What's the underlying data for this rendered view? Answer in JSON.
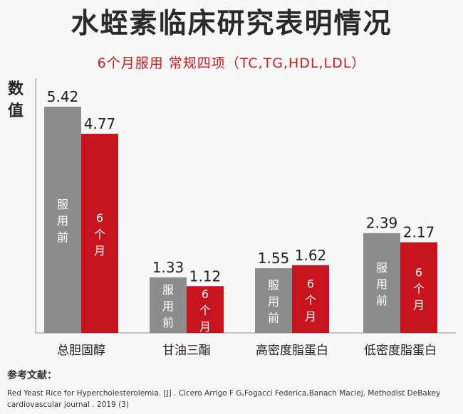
{
  "title": "水蛭素临床研究表明情况",
  "subtitle": "6个月服用 常规四项（TC,TG,HDL,LDL）",
  "y_axis_label": "数值",
  "colors": {
    "before": "#8d8d8d",
    "after": "#c8141c",
    "axis": "#b0b0b0",
    "value_text": "#222222"
  },
  "chart_data": {
    "type": "bar",
    "title": "水蛭素临床研究表明情况",
    "subtitle": "6个月服用 常规四项（TC,TG,HDL,LDL）",
    "ylabel": "数值",
    "xlabel": "",
    "ylim": [
      0,
      6.1
    ],
    "categories": [
      "总胆固醇",
      "甘油三酯",
      "高密度脂蛋白",
      "低密度脂蛋白"
    ],
    "series": [
      {
        "name": "服用前",
        "bar_text": [
          "服",
          "用",
          "前"
        ],
        "values": [
          5.42,
          1.33,
          1.55,
          2.39
        ]
      },
      {
        "name": "6个月",
        "bar_text": [
          "6",
          "个",
          "月"
        ],
        "values": [
          4.77,
          1.12,
          1.62,
          2.17
        ]
      }
    ],
    "value_labels": [
      [
        "5.42",
        "1.33",
        "1.55",
        "2.39"
      ],
      [
        "4.77",
        "1.12",
        "1.62",
        "2.17"
      ]
    ],
    "grid": false
  },
  "references": {
    "heading": "参考文献：",
    "text": "Red Yeast Rice for Hypercholesterolemia. [J] . Cicero Arrigo F G,Fogacci Federica,Banach Maciej. Methodist DeBakey cardiovascular journal . 2019 (3)"
  }
}
